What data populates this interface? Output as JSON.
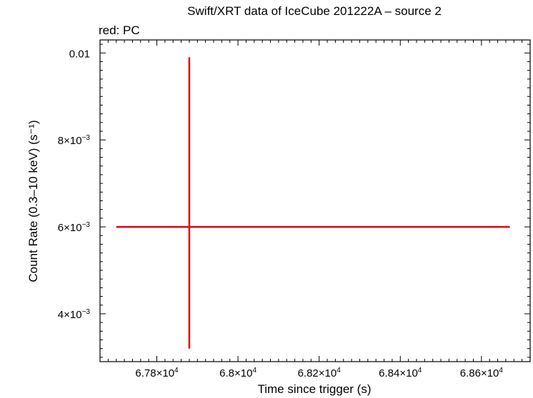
{
  "chart_data": {
    "type": "scatter",
    "title": "Swift/XRT data of IceCube 201222A – source 2",
    "subtitle": "red: PC",
    "xlabel": "Time since trigger (s)",
    "ylabel": "Count Rate (0.3–10 keV) (s⁻¹)",
    "xlim": [
      67660,
      68720
    ],
    "ylim": [
      0.0029,
      0.0103
    ],
    "xticks": [
      {
        "value": 67800,
        "mantissa": "6.78",
        "exp": "4"
      },
      {
        "value": 68000,
        "mantissa": "6.8",
        "exp": "4"
      },
      {
        "value": 68200,
        "mantissa": "6.82",
        "exp": "4"
      },
      {
        "value": 68400,
        "mantissa": "6.84",
        "exp": "4"
      },
      {
        "value": 68600,
        "mantissa": "6.86",
        "exp": "4"
      }
    ],
    "yticks": [
      {
        "value": 0.004,
        "mantissa": "4",
        "exp": "−3"
      },
      {
        "value": 0.006,
        "mantissa": "6",
        "exp": "−3"
      },
      {
        "value": 0.008,
        "mantissa": "8",
        "exp": "−3"
      },
      {
        "value": 0.01,
        "mantissa": "0.01",
        "exp": ""
      }
    ],
    "grid": false,
    "series": [
      {
        "color": "#e8000b",
        "points": [
          {
            "x": 67880,
            "y": 0.006,
            "xerr_low": 67700,
            "xerr_high": 68670,
            "yerr_low": 0.0032,
            "yerr_high": 0.0099
          }
        ]
      }
    ]
  }
}
